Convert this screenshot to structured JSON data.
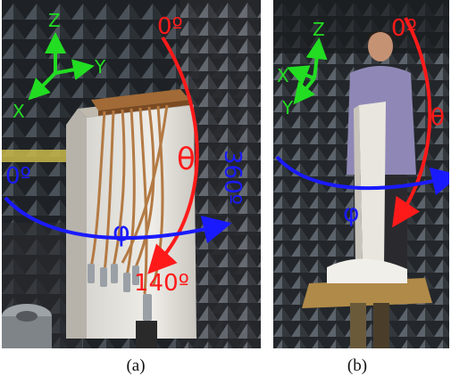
{
  "colors": {
    "axes": "#22dd22",
    "theta": "#ff1a1a",
    "phi": "#1a1aff"
  },
  "panel_a": {
    "axis_z": "Z",
    "axis_y": "Y",
    "axis_x": "X",
    "theta_start": "0º",
    "theta_symbol": "θ",
    "theta_end": "140º",
    "phi_start": "0º",
    "phi_symbol": "φ",
    "phi_end": "360º",
    "caption": "(a)"
  },
  "panel_b": {
    "axis_z": "Z",
    "axis_x": "X",
    "axis_y": "Y",
    "theta_start": "0º",
    "theta_symbol": "θ",
    "phi_symbol": "φ",
    "caption": "(b)"
  }
}
